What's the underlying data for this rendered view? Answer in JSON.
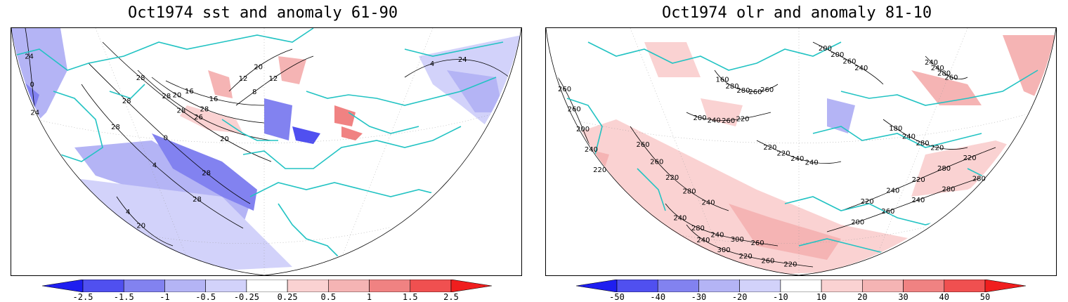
{
  "panels": [
    {
      "title": "Oct1974 sst and anomaly 61-90",
      "colorbar_labels": [
        "-2.5",
        "-1.5",
        "-1",
        "-0.5",
        "-0.25",
        "0.25",
        "0.5",
        "1",
        "1.5",
        "2.5"
      ],
      "contour_labels": [
        "24",
        "28",
        "28",
        "28",
        "28",
        "20",
        "16",
        "12",
        "8",
        "4",
        "4",
        "0",
        "4",
        "0",
        "28",
        "26",
        "28",
        "16",
        "20",
        "12",
        "24",
        "20",
        "24",
        "28",
        "28",
        "20"
      ]
    },
    {
      "title": "Oct1974 olr and anomaly 81-10",
      "colorbar_labels": [
        "-50",
        "-40",
        "-30",
        "-20",
        "-10",
        "10",
        "20",
        "30",
        "40",
        "50"
      ],
      "contour_labels": [
        "260",
        "260",
        "240",
        "240",
        "220",
        "200",
        "160",
        "200",
        "180",
        "220",
        "200",
        "240",
        "260",
        "260",
        "280",
        "300",
        "240",
        "260",
        "280",
        "200",
        "240",
        "220",
        "240",
        "240",
        "200",
        "220",
        "240",
        "220",
        "220",
        "240",
        "280",
        "260",
        "280",
        "240",
        "260",
        "280",
        "240",
        "280",
        "300",
        "260",
        "280",
        "280",
        "260",
        "240",
        "220",
        "240",
        "220",
        "260",
        "220",
        "240",
        "260",
        "220",
        "220",
        "280",
        "260"
      ]
    }
  ],
  "colors": {
    "neg_levels": [
      "#1e1ef0",
      "#5050f0",
      "#8282f0",
      "#b4b4f5",
      "#d2d2fa"
    ],
    "pos_levels": [
      "#fad2d2",
      "#f5b4b4",
      "#f08282",
      "#f05050",
      "#f01e1e"
    ],
    "coast": "#22c3c3",
    "contour": "#000000"
  }
}
